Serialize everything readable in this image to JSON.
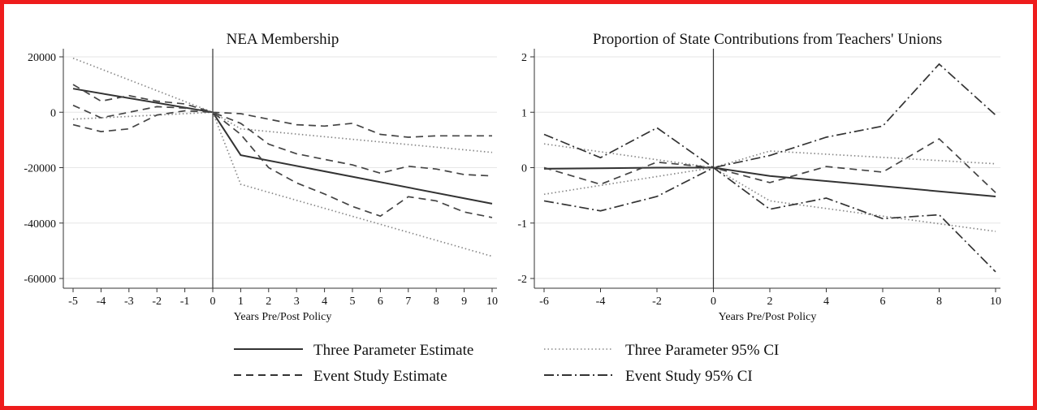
{
  "chart_data": [
    {
      "type": "line",
      "title": "NEA Membership",
      "xlabel": "Years Pre/Post Policy",
      "ylabel": "",
      "xlim": [
        -5,
        10
      ],
      "ylim": [
        -60000,
        20000
      ],
      "xticks": [
        -5,
        -4,
        -3,
        -2,
        -1,
        0,
        1,
        2,
        3,
        4,
        5,
        6,
        7,
        8,
        9,
        10
      ],
      "yticks": [
        -60000,
        -40000,
        -20000,
        0,
        20000
      ],
      "grid": "horizontal",
      "vline": 0,
      "series": [
        {
          "name": "Three Parameter Estimate",
          "style": "solid",
          "x": [
            -5,
            0,
            1,
            10
          ],
          "y": [
            8500,
            0,
            -15500,
            -33000
          ]
        },
        {
          "name": "Three Parameter 95% CI",
          "style": "dotted",
          "x": [
            -5,
            0,
            1,
            10
          ],
          "y": [
            19500,
            0,
            -26000,
            -52000
          ]
        },
        {
          "name": "Three Parameter 95% CI",
          "style": "dotted",
          "x": [
            -5,
            0,
            1,
            10
          ],
          "y": [
            -2500,
            0,
            -6000,
            -14500
          ]
        },
        {
          "name": "Event Study Estimate",
          "style": "dashed",
          "x": [
            -5,
            -4,
            -3,
            -2,
            -1,
            0,
            1,
            2,
            3,
            4,
            5,
            6,
            7,
            8,
            9,
            10
          ],
          "y": [
            2500,
            -2000,
            0,
            2000,
            1500,
            0,
            -4000,
            -11500,
            -15000,
            -17000,
            -19000,
            -22000,
            -19500,
            -20500,
            -22500,
            -23000
          ]
        },
        {
          "name": "Event Study Estimate",
          "style": "dashed",
          "x": [
            -5,
            -4,
            -3,
            -2,
            -1,
            0,
            1,
            2,
            3,
            4,
            5,
            6,
            7,
            8,
            9,
            10
          ],
          "y": [
            10000,
            4000,
            6000,
            4000,
            3000,
            0,
            -500,
            -2500,
            -4500,
            -5000,
            -4000,
            -8000,
            -9000,
            -8500,
            -8500,
            -8500
          ]
        },
        {
          "name": "Event Study Estimate",
          "style": "dashed",
          "x": [
            -5,
            -4,
            -3,
            -2,
            -1,
            0,
            1,
            2,
            3,
            4,
            5,
            6,
            7,
            8,
            9,
            10
          ],
          "y": [
            -4500,
            -7000,
            -6000,
            -1000,
            500,
            0,
            -8000,
            -20000,
            -25500,
            -29500,
            -34000,
            -37500,
            -30500,
            -32000,
            -36000,
            -38000
          ]
        }
      ]
    },
    {
      "type": "line",
      "title": "Proportion of State Contributions from Teachers' Unions",
      "xlabel": "Years Pre/Post Policy",
      "ylabel": "",
      "xlim": [
        -6,
        10
      ],
      "ylim": [
        -2,
        2
      ],
      "xticks": [
        -6,
        -4,
        -2,
        0,
        2,
        4,
        6,
        8,
        10
      ],
      "yticks": [
        -2,
        -1,
        0,
        1,
        2
      ],
      "grid": "horizontal",
      "vline": 0,
      "series": [
        {
          "name": "Three Parameter Estimate",
          "style": "solid",
          "x": [
            -6,
            -4,
            -2,
            0,
            2,
            10
          ],
          "y": [
            -0.02,
            -0.01,
            0.0,
            0,
            -0.15,
            -0.52
          ]
        },
        {
          "name": "Three Parameter 95% CI",
          "style": "dotted",
          "x": [
            -6,
            0,
            2,
            10
          ],
          "y": [
            0.43,
            0,
            0.3,
            0.07
          ]
        },
        {
          "name": "Three Parameter 95% CI",
          "style": "dotted",
          "x": [
            -6,
            0,
            2,
            10
          ],
          "y": [
            -0.48,
            0,
            -0.6,
            -1.15
          ]
        },
        {
          "name": "Event Study Estimate",
          "style": "dashed",
          "x": [
            -6,
            -4,
            -2,
            0,
            2,
            4,
            6,
            8,
            10
          ],
          "y": [
            0.0,
            -0.3,
            0.1,
            0,
            -0.27,
            0.02,
            -0.08,
            0.52,
            -0.45
          ]
        },
        {
          "name": "Event Study 95% CI",
          "style": "dashdot",
          "x": [
            -6,
            -4,
            -2,
            0,
            2,
            4,
            6,
            8,
            10
          ],
          "y": [
            0.6,
            0.18,
            0.72,
            0,
            0.22,
            0.55,
            0.75,
            1.87,
            0.95
          ]
        },
        {
          "name": "Event Study 95% CI",
          "style": "dashdot",
          "x": [
            -6,
            -4,
            -2,
            0,
            2,
            4,
            6,
            8,
            10
          ],
          "y": [
            -0.6,
            -0.78,
            -0.52,
            0,
            -0.75,
            -0.55,
            -0.92,
            -0.85,
            -1.88
          ]
        }
      ]
    }
  ],
  "legend": {
    "placement": "bottom",
    "items": [
      {
        "label": "Three Parameter Estimate",
        "style": "solid"
      },
      {
        "label": "Three Parameter 95% CI",
        "style": "dotted"
      },
      {
        "label": "Event Study Estimate",
        "style": "dashed"
      },
      {
        "label": "Event Study 95% CI",
        "style": "dashdot"
      }
    ]
  },
  "colors": {
    "frame": "#ee1c1c",
    "line": "#333333",
    "grid": "#e6e6e6"
  }
}
